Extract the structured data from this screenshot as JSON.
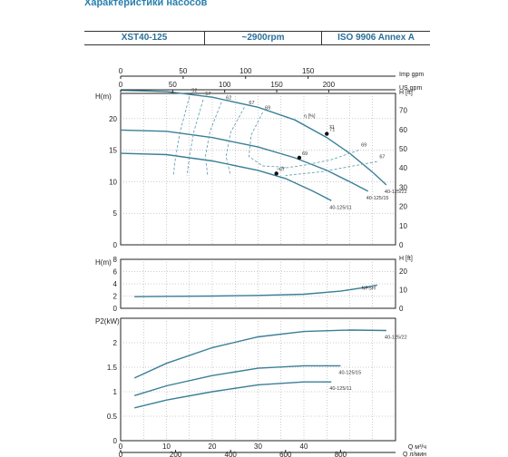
{
  "page": {
    "title": "Характеристики насосов",
    "model": "XST40-125",
    "speed": "~2900rpm",
    "standard": "ISO 9906   Annex A"
  },
  "colors": {
    "curve": "#3a7f98",
    "efficiency_dash": "#6aa2b4",
    "grid": "#999999",
    "frame": "#222222",
    "title": "#2a7fae"
  },
  "chart_data": [
    {
      "type": "line",
      "name": "head",
      "ylabel": "H(m)",
      "ylabel_right": "H [ft]",
      "xlabel_top_1": "Imp gpm",
      "xlabel_top_2": "US gpm",
      "ylim": [
        0,
        24
      ],
      "yticks": [
        "0",
        "5",
        "10",
        "15",
        "20"
      ],
      "yticks_right": [
        "0",
        "10",
        "20",
        "30",
        "40",
        "50",
        "60",
        "70"
      ],
      "top_imp_ticks": [
        "0",
        "50",
        "100",
        "150"
      ],
      "top_us_ticks": [
        "0",
        "50",
        "100",
        "150",
        "200"
      ],
      "series": [
        {
          "name": "40-125/22",
          "points": [
            [
              0,
              24.5
            ],
            [
              10,
              24.3
            ],
            [
              20,
              23.4
            ],
            [
              30,
              21.8
            ],
            [
              38,
              19.8
            ],
            [
              45,
              17.0
            ],
            [
              50,
              14.5
            ],
            [
              55,
              11.5
            ],
            [
              58,
              9.5
            ]
          ]
        },
        {
          "name": "40-125/15",
          "points": [
            [
              0,
              18.2
            ],
            [
              10,
              18.0
            ],
            [
              20,
              17.0
            ],
            [
              30,
              15.5
            ],
            [
              38,
              13.8
            ],
            [
              45,
              11.8
            ],
            [
              50,
              10.0
            ],
            [
              54,
              8.5
            ]
          ]
        },
        {
          "name": "40-125/11",
          "points": [
            [
              0,
              14.5
            ],
            [
              10,
              14.3
            ],
            [
              20,
              13.3
            ],
            [
              30,
              11.8
            ],
            [
              36,
              10.5
            ],
            [
              42,
              8.5
            ],
            [
              46,
              7.0
            ]
          ]
        }
      ],
      "efficiency_labels": [
        "52",
        "57",
        "62",
        "67",
        "69",
        "71",
        "69",
        "67",
        "η [%]"
      ],
      "bep_points": [
        [
          45,
          17.6
        ],
        [
          39,
          13.8
        ],
        [
          34,
          11.3
        ]
      ],
      "bep_labels": [
        "71",
        "69",
        "67"
      ]
    },
    {
      "type": "line",
      "name": "npsh",
      "ylabel": "H(m)",
      "ylabel_right": "H [ft]",
      "ylim": [
        0,
        8
      ],
      "yticks": [
        "0",
        "2",
        "4",
        "6",
        "8"
      ],
      "yticks_right": [
        "0",
        "10",
        "20"
      ],
      "series": [
        {
          "name": "NPSH",
          "points": [
            [
              3,
              1.9
            ],
            [
              10,
              1.95
            ],
            [
              20,
              2.0
            ],
            [
              30,
              2.1
            ],
            [
              40,
              2.3
            ],
            [
              48,
              2.8
            ],
            [
              54,
              3.5
            ],
            [
              56,
              3.8
            ]
          ]
        }
      ]
    },
    {
      "type": "line",
      "name": "power",
      "ylabel": "P2(kW)",
      "xlabel_bottom_1": "Q   м³/ч",
      "xlabel_bottom_2": "Q   л/мин",
      "ylim": [
        0,
        2.5
      ],
      "yticks": [
        "0",
        "0.5",
        "1",
        "1.5",
        "2"
      ],
      "bottom_m3h_ticks": [
        "0",
        "10",
        "20",
        "30",
        "40"
      ],
      "bottom_lmin_ticks": [
        "0",
        "200",
        "400",
        "600",
        "800"
      ],
      "series": [
        {
          "name": "40-125/22",
          "points": [
            [
              3,
              1.28
            ],
            [
              10,
              1.58
            ],
            [
              20,
              1.9
            ],
            [
              30,
              2.12
            ],
            [
              40,
              2.23
            ],
            [
              50,
              2.26
            ],
            [
              58,
              2.25
            ]
          ]
        },
        {
          "name": "40-125/15",
          "points": [
            [
              3,
              0.92
            ],
            [
              10,
              1.12
            ],
            [
              20,
              1.33
            ],
            [
              30,
              1.48
            ],
            [
              40,
              1.53
            ],
            [
              48,
              1.53
            ]
          ]
        },
        {
          "name": "40-125/11",
          "points": [
            [
              3,
              0.67
            ],
            [
              10,
              0.83
            ],
            [
              20,
              1.0
            ],
            [
              30,
              1.14
            ],
            [
              40,
              1.2
            ],
            [
              46,
              1.2
            ]
          ]
        }
      ]
    }
  ]
}
